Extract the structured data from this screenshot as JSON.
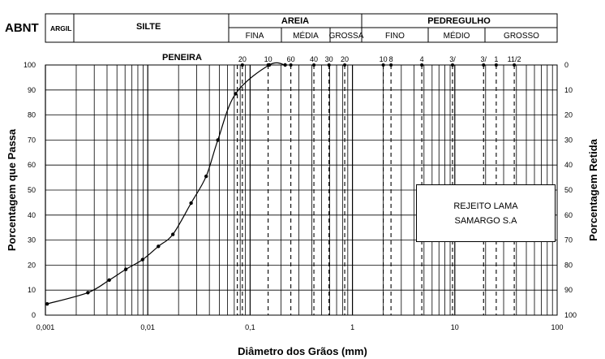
{
  "classification": {
    "standard": "ABNT",
    "argila": "ARGIL",
    "silte": "SILTE",
    "areia": "AREIA",
    "areia_sub": [
      "FINA",
      "MÉDIA",
      "GROSSA"
    ],
    "pedregulho": "PEDREGULHO",
    "pedregulho_sub": [
      "FINO",
      "MÉDIO",
      "GROSSO"
    ]
  },
  "sieves": {
    "title": "PENEIRA",
    "labels": [
      "20",
      "10",
      "60",
      "40",
      "30",
      "20",
      "10",
      "8",
      "4",
      "3/",
      "3/",
      "1",
      "11/2"
    ]
  },
  "legend": {
    "line1": "REJEITO LAMA",
    "line2": "SAMARGO S.A"
  },
  "colors": {
    "line": "#000000",
    "grid": "#000000",
    "background": "#ffffff"
  },
  "chart_data": {
    "type": "line",
    "title": "",
    "xlabel": "Diâmetro dos Grãos (mm)",
    "ylabel": "Porcentagem que Passa",
    "ylabel_right": "Porcentagem Retida",
    "x_scale": "log",
    "xlim": [
      0.001,
      100
    ],
    "ylim": [
      0,
      100
    ],
    "x_ticks": [
      "0,001",
      "0,01",
      "0,1",
      "1",
      "10",
      "100"
    ],
    "y_ticks": [
      "0",
      "10",
      "20",
      "30",
      "40",
      "50",
      "60",
      "70",
      "80",
      "90",
      "100"
    ],
    "y_ticks_right": [
      "100",
      "90",
      "80",
      "70",
      "60",
      "50",
      "40",
      "30",
      "20",
      "10",
      "0"
    ],
    "grid": true,
    "series": [
      {
        "name": "",
        "x": [
          0.00104,
          0.0026,
          0.0042,
          0.0061,
          0.0089,
          0.0127,
          0.0176,
          0.0265,
          0.0372,
          0.0484,
          0.0721,
          0.154,
          0.22
        ],
        "y": [
          4.5,
          9,
          14,
          18.3,
          22.2,
          27.5,
          32.3,
          44.8,
          55.5,
          70,
          88.5,
          100,
          100
        ]
      }
    ]
  }
}
